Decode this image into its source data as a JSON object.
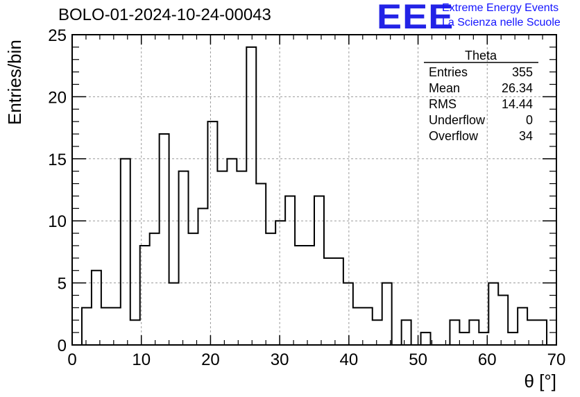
{
  "header": {
    "title": "BOLO-01-2024-10-24-00043",
    "logo_mark": "EEE",
    "logo_line1": "Extreme Energy Events",
    "logo_line2": "La Scienza nelle Scuole",
    "logo_color": "#1414ff"
  },
  "stats_box": {
    "title": "Theta",
    "rows": [
      {
        "label": "Entries",
        "value": "355"
      },
      {
        "label": "Mean",
        "value": "26.34"
      },
      {
        "label": "RMS",
        "value": "14.44"
      },
      {
        "label": "Underflow",
        "value": "0"
      },
      {
        "label": "Overflow",
        "value": "34"
      }
    ]
  },
  "chart_data": {
    "type": "histogram",
    "xlabel": "θ [°]",
    "ylabel": "Entries/bin",
    "xlim": [
      0,
      70
    ],
    "ylim": [
      0,
      25
    ],
    "bin_start": 1.4,
    "bin_width": 1.4,
    "x_ticks": [
      "0",
      "10",
      "20",
      "30",
      "40",
      "50",
      "60",
      "70"
    ],
    "y_ticks": [
      "0",
      "5",
      "10",
      "15",
      "20",
      "25"
    ],
    "grid": true,
    "values": [
      3,
      6,
      3,
      3,
      15,
      2,
      8,
      9,
      17,
      5,
      14,
      9,
      11,
      18,
      14,
      15,
      14,
      24,
      13,
      9,
      10,
      12,
      8,
      8,
      12,
      7,
      7,
      5,
      3,
      3,
      2,
      5,
      0,
      2,
      0,
      1,
      0,
      0,
      2,
      1,
      2,
      1,
      5,
      4,
      1,
      3,
      2,
      2
    ]
  }
}
